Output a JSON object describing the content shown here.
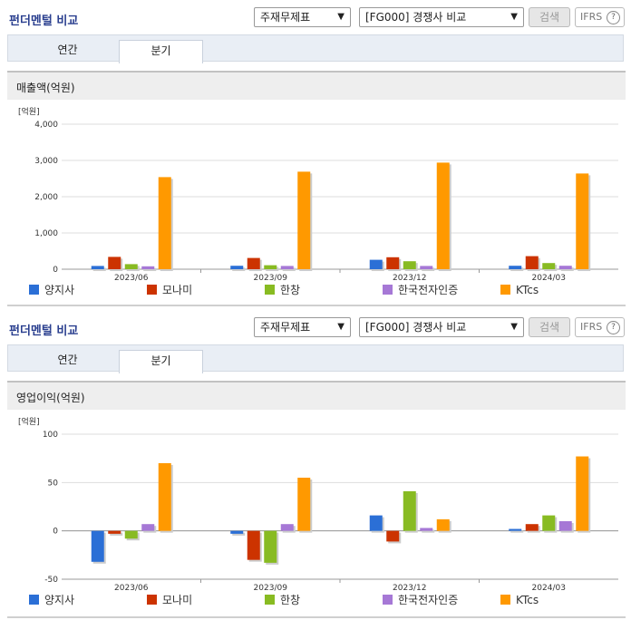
{
  "panels": [
    {
      "title": "펀더멘털 비교",
      "select1": "주재무제표",
      "select2": "[FG000] 경쟁사 비교",
      "search_label": "검색",
      "ifrs_label": "IFRS",
      "tabs": [
        "연간",
        "분기"
      ],
      "active_tab": 1,
      "section_label": "매출액(억원)"
    },
    {
      "title": "펀더멘털 비교",
      "select1": "주재무제표",
      "select2": "[FG000] 경쟁사 비교",
      "search_label": "검색",
      "ifrs_label": "IFRS",
      "tabs": [
        "연간",
        "분기"
      ],
      "active_tab": 1,
      "section_label": "영업이익(억원)"
    }
  ],
  "colors": [
    "#2b6fd6",
    "#cc3300",
    "#88bb22",
    "#a678d6",
    "#ff9900"
  ],
  "chart_data": [
    {
      "type": "bar",
      "unit": "[억원]",
      "categories": [
        "2023/06",
        "2023/09",
        "2023/12",
        "2024/03"
      ],
      "ylim": [
        0,
        4000
      ],
      "yticks": [
        0,
        1000,
        2000,
        3000,
        4000
      ],
      "ytick_labels": [
        "0",
        "1,000",
        "2,000",
        "3,000",
        "4,000"
      ],
      "grid": true,
      "legend": "bottom",
      "series": [
        {
          "name": "양지사",
          "values": [
            90,
            95,
            260,
            95
          ]
        },
        {
          "name": "모나미",
          "values": [
            340,
            310,
            330,
            360
          ]
        },
        {
          "name": "한창",
          "values": [
            140,
            110,
            220,
            170
          ]
        },
        {
          "name": "한국전자인증",
          "values": [
            80,
            90,
            90,
            95
          ]
        },
        {
          "name": "KTcs",
          "values": [
            2540,
            2690,
            2940,
            2640
          ]
        }
      ]
    },
    {
      "type": "bar",
      "unit": "[억원]",
      "categories": [
        "2023/06",
        "2023/09",
        "2023/12",
        "2024/03"
      ],
      "ylim": [
        -50,
        100
      ],
      "yticks": [
        -50,
        0,
        50,
        100
      ],
      "ytick_labels": [
        "-50",
        "0",
        "50",
        "100"
      ],
      "grid": true,
      "legend": "bottom",
      "series": [
        {
          "name": "양지사",
          "values": [
            -32,
            -3,
            16,
            2
          ]
        },
        {
          "name": "모나미",
          "values": [
            -3,
            -30,
            -11,
            7
          ]
        },
        {
          "name": "한창",
          "values": [
            -8,
            -33,
            41,
            16
          ]
        },
        {
          "name": "한국전자인증",
          "values": [
            7,
            7,
            3,
            10
          ]
        },
        {
          "name": "KTcs",
          "values": [
            70,
            55,
            12,
            77
          ]
        }
      ]
    }
  ]
}
